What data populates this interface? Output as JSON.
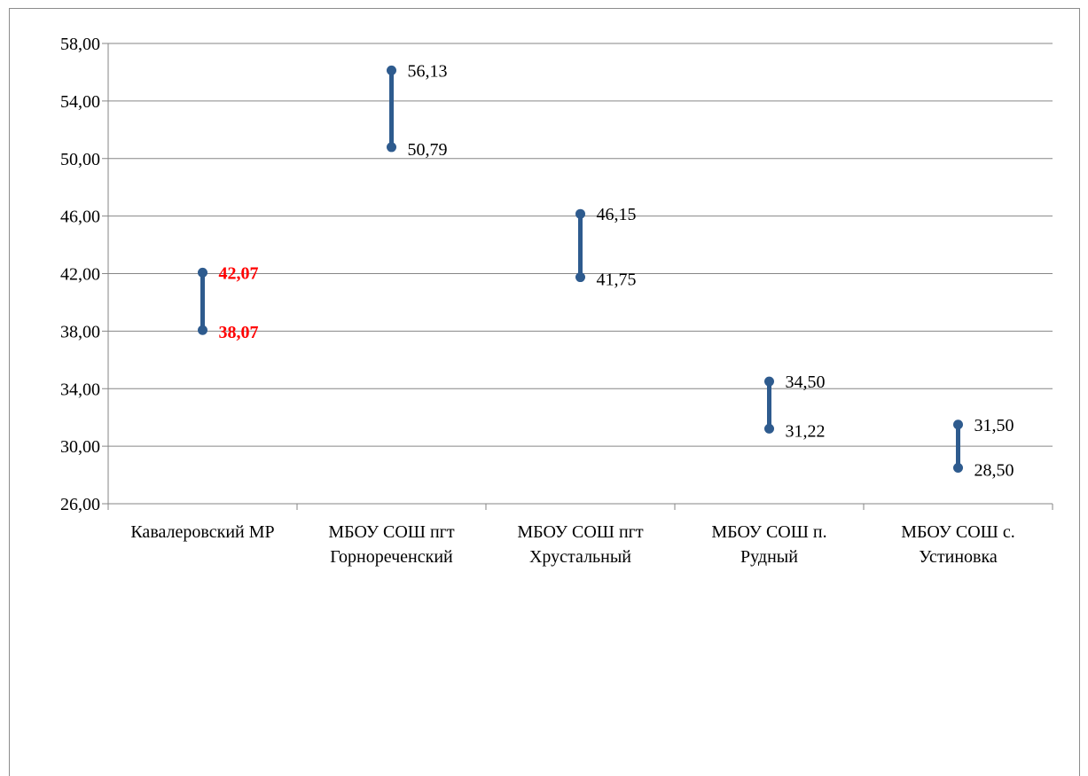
{
  "chart_data": {
    "type": "range",
    "categories": [
      [
        "Кавалеровский МР"
      ],
      [
        "МБОУ СОШ пгт",
        "Горнореченский"
      ],
      [
        "МБОУ СОШ пгт",
        "Хрустальный"
      ],
      [
        "МБОУ СОШ п.",
        "Рудный"
      ],
      [
        "МБОУ СОШ с.",
        "Устиновка"
      ]
    ],
    "series": [
      {
        "values": [
          42.07,
          56.13,
          46.15,
          34.5,
          31.5
        ]
      },
      {
        "values": [
          38.07,
          50.79,
          41.75,
          31.22,
          28.5
        ]
      }
    ],
    "value_labels": {
      "high": [
        "42,07",
        "56,13",
        "46,15",
        "34,50",
        "31,50"
      ],
      "low": [
        "38,07",
        "50,79",
        "41,75",
        "31,22",
        "28,50"
      ]
    },
    "highlight_category_index": 0,
    "y_ticks": [
      "26,00",
      "30,00",
      "34,00",
      "38,00",
      "42,00",
      "46,00",
      "50,00",
      "54,00",
      "58,00"
    ],
    "ylim": [
      26,
      58
    ],
    "grid": true,
    "colors": {
      "series": "#2e5b8e",
      "highlight": "#ff0000",
      "grid": "#868686",
      "text": "#000000"
    }
  }
}
